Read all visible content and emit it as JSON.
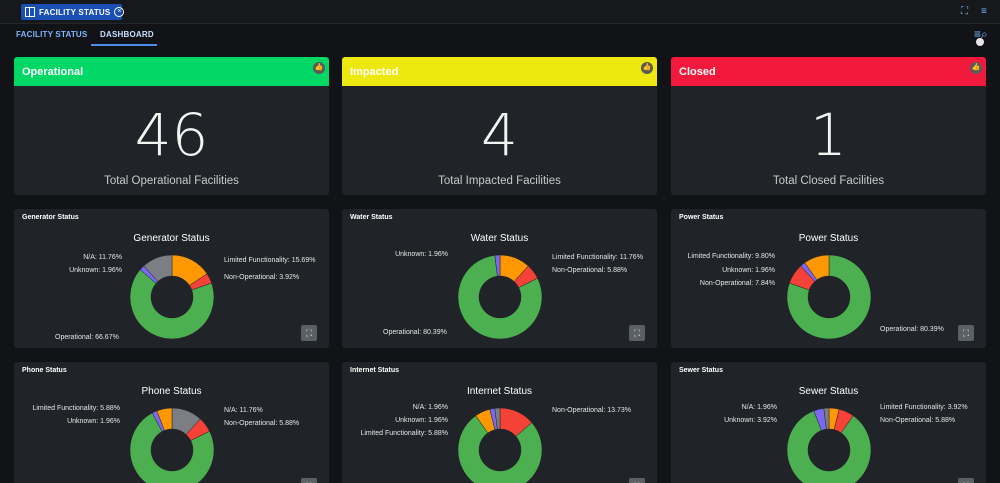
{
  "topbar": {
    "tab_label": "FACILITY STATUS"
  },
  "subnav": {
    "tabs": [
      {
        "label": "FACILITY STATUS"
      },
      {
        "label": "DASHBOARD"
      }
    ]
  },
  "stats": [
    {
      "title": "Operational",
      "value": "46",
      "caption": "Total Operational Facilities",
      "color": "#00d765"
    },
    {
      "title": "Impacted",
      "value": "4",
      "caption": "Total Impacted Facilities",
      "color": "#ede80e"
    },
    {
      "title": "Closed",
      "value": "1",
      "caption": "Total Closed Facilities",
      "color": "#f3193c"
    }
  ],
  "colors": {
    "operational": "#4caf50",
    "limited": "#ff9800",
    "non_operational": "#f44336",
    "unknown": "#7b68ee",
    "na": "#7b7e84"
  },
  "charts": [
    {
      "header": "Generator Status",
      "title": "Generator Status",
      "labels": [
        "N/A: 11.76%",
        "Unknown: 1.96%",
        "Limited Functionality: 15.69%",
        "Non-Operational: 3.92%",
        "Operational: 66.67%"
      ],
      "chart_data": {
        "type": "pie",
        "categories": [
          "Limited Functionality",
          "Non-Operational",
          "Operational",
          "Unknown",
          "N/A"
        ],
        "values": [
          15.69,
          3.92,
          66.67,
          1.96,
          11.76
        ]
      }
    },
    {
      "header": "Water Status",
      "title": "Water Status",
      "labels": [
        "Unknown: 1.96%",
        "Limited Functionality: 11.76%",
        "Non-Operational: 5.88%",
        "Operational: 80.39%"
      ],
      "chart_data": {
        "type": "pie",
        "categories": [
          "Limited Functionality",
          "Non-Operational",
          "Operational",
          "Unknown"
        ],
        "values": [
          11.76,
          5.88,
          80.39,
          1.96
        ]
      }
    },
    {
      "header": "Power Status",
      "title": "Power Status",
      "labels": [
        "Limited Functionality: 9.80%",
        "Unknown: 1.96%",
        "Non-Operational: 7.84%",
        "Operational: 80.39%"
      ],
      "chart_data": {
        "type": "pie",
        "categories": [
          "Operational",
          "Non-Operational",
          "Unknown",
          "Limited Functionality"
        ],
        "values": [
          80.39,
          7.84,
          1.96,
          9.8
        ]
      }
    },
    {
      "header": "Phone Status",
      "title": "Phone Status",
      "labels": [
        "Limited Functionality: 5.88%",
        "Unknown: 1.96%",
        "N/A: 11.76%",
        "Non-Operational: 5.88%"
      ],
      "chart_data": {
        "type": "pie",
        "categories": [
          "N/A",
          "Non-Operational",
          "Operational",
          "Unknown",
          "Limited Functionality"
        ],
        "values": [
          11.76,
          5.88,
          74.5,
          1.96,
          5.88
        ]
      }
    },
    {
      "header": "Internet Status",
      "title": "Internet Status",
      "labels": [
        "N/A: 1.96%",
        "Unknown: 1.96%",
        "Limited Functionality: 5.88%",
        "Non-Operational: 13.73%"
      ],
      "chart_data": {
        "type": "pie",
        "categories": [
          "Non-Operational",
          "Operational",
          "Limited Functionality",
          "Unknown",
          "N/A"
        ],
        "values": [
          13.73,
          76.47,
          5.88,
          1.96,
          1.96
        ]
      }
    },
    {
      "header": "Sewer Status",
      "title": "Sewer Status",
      "labels": [
        "N/A: 1.96%",
        "Unknown: 3.92%",
        "Limited Functionality: 3.92%",
        "Non-Operational: 5.88%"
      ],
      "chart_data": {
        "type": "pie",
        "categories": [
          "Limited Functionality",
          "Non-Operational",
          "Operational",
          "Unknown",
          "N/A"
        ],
        "values": [
          3.92,
          5.88,
          84.32,
          3.92,
          1.96
        ]
      }
    }
  ]
}
